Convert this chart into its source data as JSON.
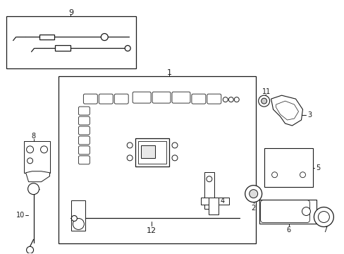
{
  "background_color": "#ffffff",
  "fig_width": 4.89,
  "fig_height": 3.6,
  "dpi": 100,
  "line_color": "#1a1a1a"
}
